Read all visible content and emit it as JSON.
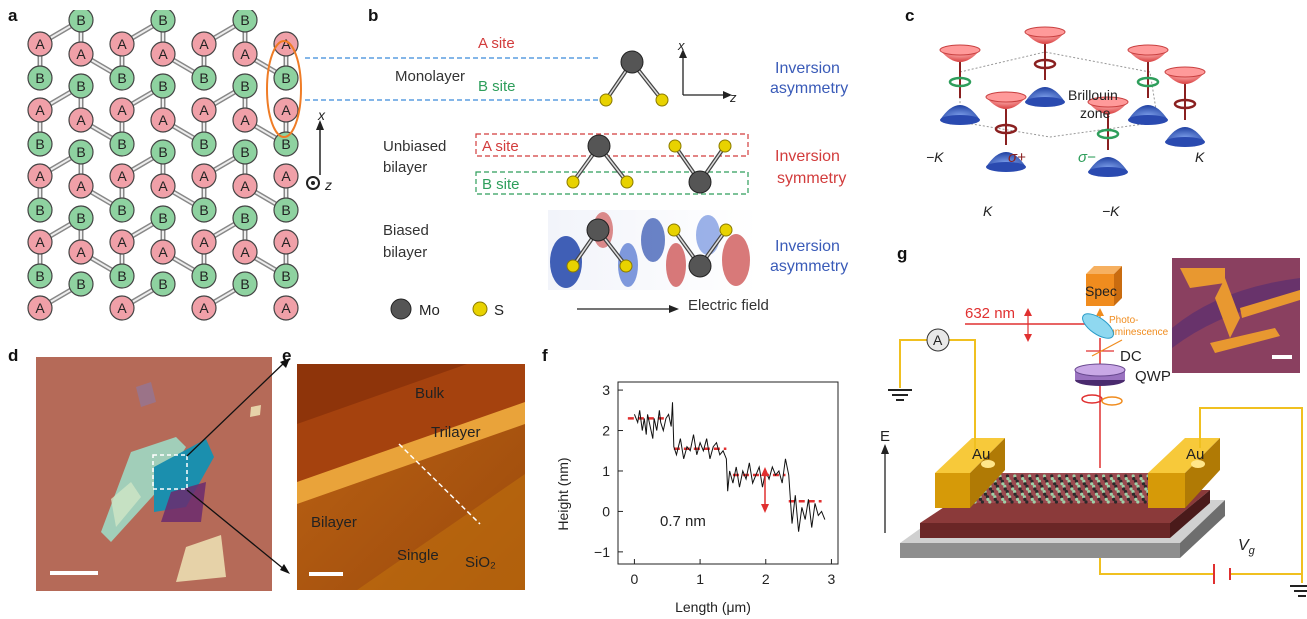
{
  "panel_labels": {
    "a": "a",
    "b": "b",
    "c": "c",
    "d": "d",
    "e": "e",
    "f": "f",
    "g": "g"
  },
  "panel_a": {
    "site_a": "A",
    "site_b": "B",
    "axis_x": "x",
    "axis_z": "z"
  },
  "panel_b": {
    "a_site": "A site",
    "b_site": "B site",
    "monolayer": "Monolayer",
    "unbiased_line1": "Unbiased",
    "unbiased_line2": "bilayer",
    "biased_line1": "Biased",
    "biased_line2": "bilayer",
    "inv_asym1_l1": "Inversion",
    "inv_asym1_l2": "asymmetry",
    "inv_sym_l1": "Inversion",
    "inv_sym_l2": "symmetry",
    "inv_asym2_l1": "Inversion",
    "inv_asym2_l2": "asymmetry",
    "axis_x": "x",
    "axis_z": "z",
    "legend_mo": "Mo",
    "legend_s": "S",
    "electric_field": "Electric field",
    "colors": {
      "red": "#d23c3c",
      "green": "#2e9e5b",
      "blue": "#3a5bb8",
      "mo": "#555555",
      "s": "#e8d200"
    }
  },
  "panel_c": {
    "brillouin_l1": "Brillouin",
    "brillouin_l2": "zone",
    "neg_k_left": "−K",
    "sigma_plus": "σ+",
    "sigma_minus": "σ−",
    "k_right": "K",
    "k_bottom": "K",
    "neg_k_bottom": "−K"
  },
  "panel_e": {
    "bulk": "Bulk",
    "trilayer": "Trilayer",
    "bilayer": "Bilayer",
    "single": "Single",
    "sio2": "SiO₂"
  },
  "panel_f": {
    "annotation": "0.7 nm"
  },
  "panel_g": {
    "spec": "Spec",
    "photolum_l1": "Photo-",
    "photolum_l2": "luminescence",
    "wavelength": "632 nm",
    "dc": "DC",
    "qwp": "QWP",
    "ammeter": "A",
    "au_left": "Au",
    "au_right": "Au",
    "e_field": "E",
    "vg": "V",
    "vg_sub": "g"
  },
  "chart_data": {
    "type": "line",
    "title": "",
    "xlabel": "Length (μm)",
    "ylabel": "Height (nm)",
    "xlim": [
      -0.25,
      3.1
    ],
    "ylim": [
      -1.3,
      3.2
    ],
    "xticks": [
      0,
      1,
      2,
      3
    ],
    "yticks": [
      -1,
      0,
      1,
      2,
      3
    ],
    "series": [
      {
        "values_x": [
          0,
          0.05,
          0.08,
          0.12,
          0.15,
          0.18,
          0.2,
          0.24,
          0.28,
          0.3,
          0.34,
          0.38,
          0.4,
          0.44,
          0.48,
          0.52,
          0.56,
          0.58,
          0.6,
          0.64,
          0.7,
          0.75,
          0.8,
          0.85,
          0.9,
          0.95,
          1.0,
          1.05,
          1.1,
          1.15,
          1.2,
          1.25,
          1.3,
          1.35,
          1.4,
          1.42,
          1.45,
          1.5,
          1.55,
          1.6,
          1.65,
          1.7,
          1.75,
          1.8,
          1.85,
          1.9,
          1.95,
          2.0,
          2.05,
          2.1,
          2.15,
          2.2,
          2.25,
          2.3,
          2.35,
          2.4,
          2.45,
          2.5,
          2.55,
          2.6,
          2.65,
          2.7,
          2.75,
          2.8,
          2.85,
          2.9
        ],
        "values": [
          2.4,
          2.2,
          2.5,
          2.0,
          2.3,
          1.9,
          2.4,
          2.1,
          1.8,
          2.3,
          2.0,
          2.5,
          2.2,
          2.0,
          2.3,
          2.4,
          2.1,
          2.7,
          1.6,
          1.4,
          1.8,
          1.3,
          1.6,
          1.5,
          1.9,
          1.4,
          1.7,
          1.5,
          1.8,
          1.3,
          1.6,
          1.7,
          1.4,
          1.5,
          1.3,
          0.5,
          1.0,
          0.7,
          1.1,
          0.6,
          1.0,
          0.8,
          1.2,
          0.7,
          0.9,
          1.1,
          0.6,
          1.0,
          0.8,
          1.1,
          0.9,
          1.0,
          0.7,
          1.3,
          0.9,
          -0.3,
          0.4,
          -0.5,
          0.1,
          -0.2,
          0.3,
          -0.4,
          0.2,
          -0.1,
          0.0,
          -0.2
        ]
      }
    ],
    "levels": [
      {
        "x": [
          -0.1,
          0.45
        ],
        "y": 2.3
      },
      {
        "x": [
          0.6,
          1.4
        ],
        "y": 1.55
      },
      {
        "x": [
          1.5,
          2.3
        ],
        "y": 0.9
      },
      {
        "x": [
          2.35,
          2.85
        ],
        "y": 0.25
      }
    ]
  }
}
